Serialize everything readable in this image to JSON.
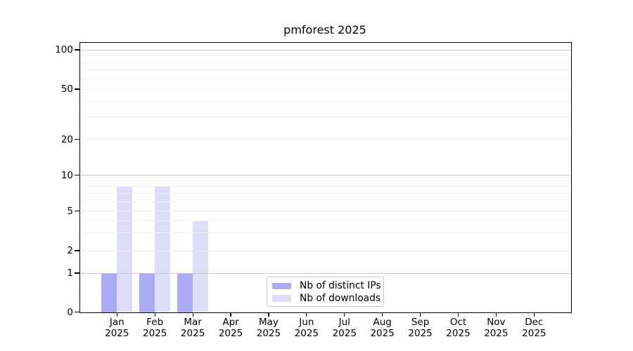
{
  "title": "pmforest 2025",
  "legend": {
    "items": [
      {
        "label": "Nb of distinct IPs",
        "color": "#aaaaf5"
      },
      {
        "label": "Nb of downloads",
        "color": "#ddddf8"
      }
    ]
  },
  "x_axis": {
    "months": [
      "Jan",
      "Feb",
      "Mar",
      "Apr",
      "May",
      "Jun",
      "Jul",
      "Aug",
      "Sep",
      "Oct",
      "Nov",
      "Dec"
    ],
    "year": "2025"
  },
  "y_axis": {
    "tick_values": [
      100,
      50,
      20,
      10,
      5,
      2,
      1,
      0
    ]
  },
  "chart_data": {
    "type": "bar",
    "title": "pmforest 2025",
    "categories": [
      "Jan 2025",
      "Feb 2025",
      "Mar 2025",
      "Apr 2025",
      "May 2025",
      "Jun 2025",
      "Jul 2025",
      "Aug 2025",
      "Sep 2025",
      "Oct 2025",
      "Nov 2025",
      "Dec 2025"
    ],
    "series": [
      {
        "name": "Nb of distinct IPs",
        "color": "#aaaaf5",
        "values": [
          1,
          1,
          1,
          0,
          0,
          0,
          0,
          0,
          0,
          0,
          0,
          0
        ]
      },
      {
        "name": "Nb of downloads",
        "color": "#ddddf8",
        "values": [
          8,
          8,
          4,
          0,
          0,
          0,
          0,
          0,
          0,
          0,
          0,
          0
        ]
      }
    ],
    "ylabel": "",
    "xlabel": "",
    "yscale": "symlog",
    "yticks": [
      0,
      1,
      2,
      5,
      10,
      20,
      50,
      100
    ],
    "ylim": [
      0,
      110
    ],
    "grid": "horizontal, major and minor log gridlines",
    "legend_position": "lower center"
  },
  "colors": {
    "background": "#ffffff",
    "axis": "#000000",
    "grid_major": "#c8c8c8",
    "grid_minor": "#f2f2f2",
    "text": "#000000"
  }
}
